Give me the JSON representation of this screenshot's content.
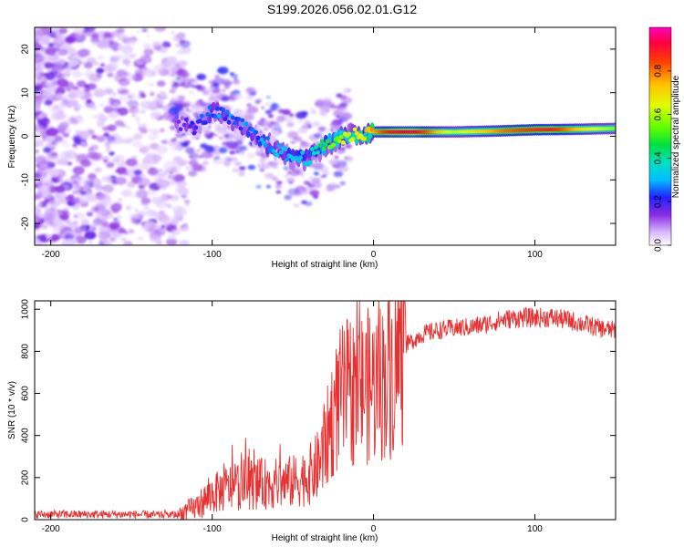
{
  "title": "S199.2026.056.02.01.G12",
  "chart_data": [
    {
      "type": "heatmap",
      "xlabel": "Height of straight line (km)",
      "ylabel": "Frequency (Hz)",
      "xlim": [
        -210,
        150
      ],
      "ylim": [
        -25,
        25
      ],
      "xticks": [
        -200,
        -100,
        0,
        100
      ],
      "xtick_labels": [
        "-200",
        "-100",
        "0",
        "100"
      ],
      "yticks": [
        -20,
        -10,
        0,
        10,
        20
      ],
      "ytick_labels": [
        "-20",
        "-10",
        "0",
        "10",
        "20"
      ],
      "colorbar": {
        "label": "Normalized spectral amplitude",
        "range": [
          0,
          1
        ],
        "ticks": [
          0.0,
          0.2,
          0.4,
          0.6,
          0.8
        ],
        "tick_labels": [
          "0.0",
          "0.2",
          "0.4",
          "0.6",
          "0.8"
        ],
        "colormap": "rainbow"
      },
      "ridge": [
        {
          "x": -120,
          "y": 3
        },
        {
          "x": -110,
          "y": 2
        },
        {
          "x": -100,
          "y": 6
        },
        {
          "x": -90,
          "y": 4
        },
        {
          "x": -80,
          "y": 2
        },
        {
          "x": -70,
          "y": -1
        },
        {
          "x": -60,
          "y": -3
        },
        {
          "x": -50,
          "y": -5
        },
        {
          "x": -40,
          "y": -5
        },
        {
          "x": -30,
          "y": -2
        },
        {
          "x": -20,
          "y": -0.5
        },
        {
          "x": -10,
          "y": 0.5
        },
        {
          "x": 0,
          "y": 1
        },
        {
          "x": 25,
          "y": 1
        },
        {
          "x": 50,
          "y": 1
        },
        {
          "x": 75,
          "y": 1.2
        },
        {
          "x": 100,
          "y": 1.5
        },
        {
          "x": 125,
          "y": 1.6
        },
        {
          "x": 150,
          "y": 1.8
        }
      ],
      "peak_amplitude": [
        {
          "x": -120,
          "v": 0.15
        },
        {
          "x": -100,
          "v": 0.25
        },
        {
          "x": -80,
          "v": 0.25
        },
        {
          "x": -60,
          "v": 0.3
        },
        {
          "x": -40,
          "v": 0.35
        },
        {
          "x": -20,
          "v": 0.6
        },
        {
          "x": 0,
          "v": 0.75
        },
        {
          "x": 10,
          "v": 0.9
        },
        {
          "x": 25,
          "v": 0.95
        },
        {
          "x": 50,
          "v": 0.6
        },
        {
          "x": 80,
          "v": 0.8
        },
        {
          "x": 110,
          "v": 0.9
        },
        {
          "x": 130,
          "v": 0.7
        },
        {
          "x": 150,
          "v": 0.55
        }
      ]
    },
    {
      "type": "line",
      "xlabel": "Height of straight line (km)",
      "ylabel": "SNR (10 * v/v)",
      "xlim": [
        -210,
        150
      ],
      "ylim": [
        0,
        1040
      ],
      "xticks": [
        -200,
        -100,
        0,
        100
      ],
      "xtick_labels": [
        "-200",
        "-100",
        "0",
        "100"
      ],
      "yticks": [
        0,
        200,
        400,
        600,
        800,
        1000
      ],
      "ytick_labels": [
        "0",
        "200",
        "400",
        "600",
        "800",
        "1000"
      ],
      "color": "#e83030",
      "series": [
        {
          "name": "SNR",
          "x": [
            -210,
            -190,
            -170,
            -150,
            -130,
            -120,
            -110,
            -100,
            -90,
            -80,
            -70,
            -60,
            -50,
            -40,
            -35,
            -30,
            -25,
            -20,
            -15,
            -10,
            -5,
            0,
            5,
            10,
            15,
            20,
            30,
            40,
            50,
            60,
            70,
            80,
            90,
            100,
            110,
            120,
            130,
            140,
            150
          ],
          "y": [
            25,
            25,
            25,
            25,
            22,
            25,
            60,
            120,
            150,
            170,
            170,
            170,
            180,
            210,
            250,
            350,
            500,
            580,
            610,
            620,
            630,
            640,
            660,
            690,
            760,
            830,
            880,
            900,
            910,
            915,
            930,
            950,
            960,
            960,
            960,
            950,
            930,
            910,
            900
          ]
        }
      ]
    }
  ]
}
